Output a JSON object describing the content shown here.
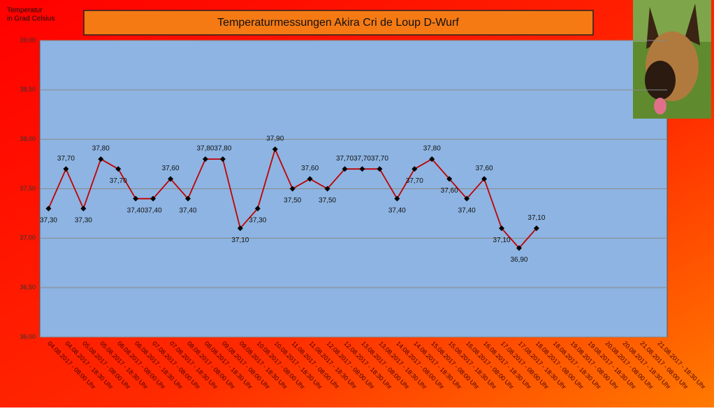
{
  "chart_data": {
    "type": "line",
    "title": "Temperaturmessungen  Akira Cri de Loup  D-Wurf",
    "y_label": [
      "Temperatur",
      "in Grad Celsius"
    ],
    "categories": [
      "04.08.2017 - 08:00 Uhr",
      "04.08.2017 - 18:30 Uhr",
      "05.08.2017 - 08:00 Uhr",
      "05.08.2017 - 18:30 Uhr",
      "06.08.2017 - 08:00 Uhr",
      "06.08.2017 - 18:30 Uhr",
      "07.08.2017 - 08:00 Uhr",
      "07.08.2017 - 18:30 Uhr",
      "08.08.2017 - 08:00 Uhr",
      "08.08.2017 - 18:30 Uhr",
      "09.08.2017 - 08:00 Uhr",
      "09.08.2017 - 18:30 Uhr",
      "10.08.2017 - 08:00 Uhr",
      "10.08.2017 - 18:30 Uhr",
      "11.08.2017 - 08:00 Uhr",
      "11.08.2017 - 18:30 Uhr",
      "12.08.2017 - 08:00 Uhr",
      "12.08.2017 - 18:30 Uhr",
      "13.08.2017 - 08:00 Uhr",
      "13.08.2017 - 18:30 Uhr",
      "14.08.2017 - 08:00 Uhr",
      "14.08.2017 - 18:30 Uhr",
      "15.08.2017 - 08:00 Uhr",
      "15.08.2017 - 18:30 Uhr",
      "16.08.2017 - 08:00 Uhr",
      "16.08.2017 - 18:30 Uhr",
      "17.08.2017 - 08:00 Uhr",
      "17.08.2017 - 18:30 Uhr",
      "18.08.2017 - 08:00 Uhr",
      "18.08.2017 - 18:30 Uhr",
      "19.08.2017 - 08:00 Uhr",
      "19.08.2017 - 18:30 Uhr",
      "20.08.2017 - 08:00 Uhr",
      "20.08.2017 - 18:30 Uhr",
      "21.08.2017 - 08:00 Uhr",
      "21.08.2017 - 18:30 Uhr"
    ],
    "values": [
      37.3,
      37.7,
      37.3,
      37.8,
      37.7,
      37.4,
      37.4,
      37.6,
      37.4,
      37.8,
      37.8,
      37.1,
      37.3,
      37.9,
      37.5,
      37.6,
      37.5,
      37.7,
      37.7,
      37.7,
      37.4,
      37.7,
      37.8,
      37.6,
      37.4,
      37.6,
      37.1,
      36.9,
      37.1,
      null,
      null,
      null,
      null,
      null,
      null,
      null
    ],
    "value_labels": [
      "37,30",
      "37,70",
      "37,30",
      "37,80",
      "37,70",
      "37,40",
      "37,40",
      "37,60",
      "37,40",
      "37,80",
      "37,80",
      "37,10",
      "37,30",
      "37,90",
      "37,50",
      "37,60",
      "37,50",
      "37,70",
      "37,70",
      "37,70",
      "37,40",
      "37,70",
      "37,80",
      "37,60",
      "37,40",
      "37,60",
      "37,10",
      "36,90",
      "37,10",
      null,
      null,
      null,
      null,
      null,
      null,
      null
    ],
    "color": "#c00000",
    "ylim": [
      36,
      39
    ],
    "yticks": [
      {
        "value": 36,
        "label": "36,00"
      },
      {
        "value": 36.5,
        "label": "36,50"
      },
      {
        "value": 37,
        "label": "37,00"
      },
      {
        "value": 37.5,
        "label": "37,50"
      },
      {
        "value": 38,
        "label": "38,00"
      },
      {
        "value": 38.5,
        "label": "38,50"
      },
      {
        "value": 39,
        "label": "39,00"
      }
    ],
    "grid": true
  }
}
